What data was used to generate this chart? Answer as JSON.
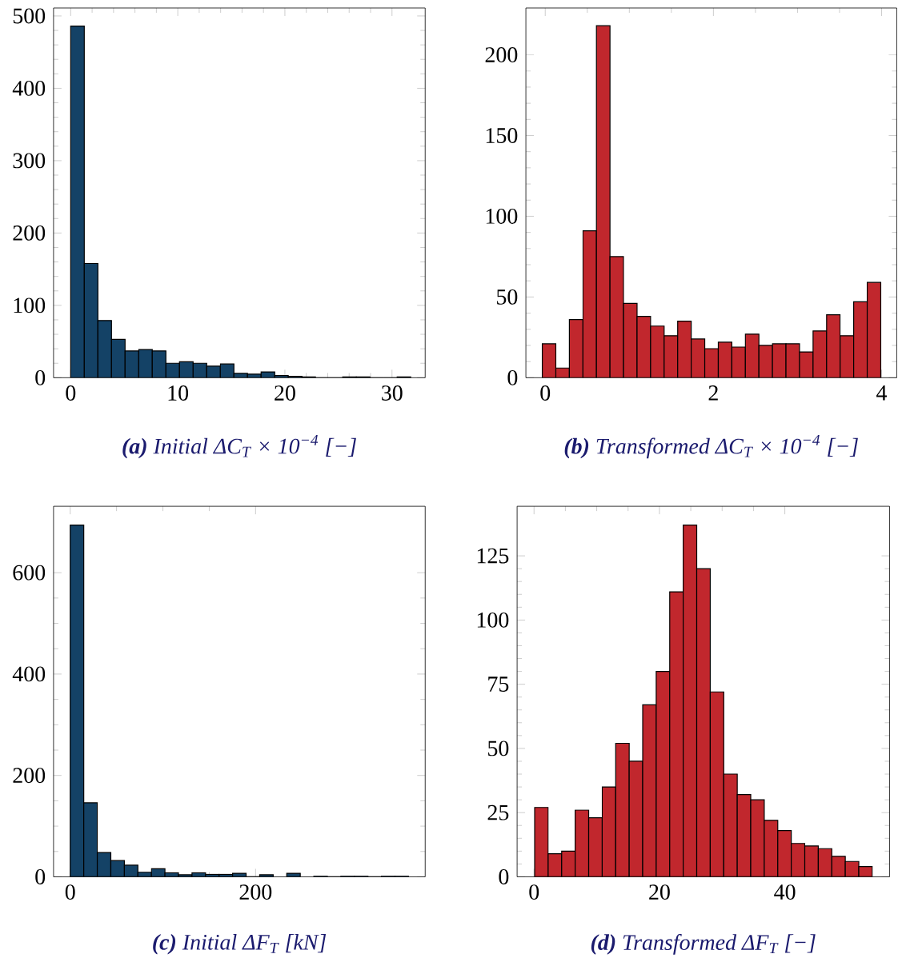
{
  "chart_data": [
    {
      "type": "histogram",
      "xlabel": "**(a)** Initial ΔC$_{T}$ × 10$^{−4}$ [−]",
      "color": "#144266",
      "bins": [
        0,
        1.27,
        2.54,
        3.81,
        5.08,
        6.35,
        7.62,
        8.89,
        10.16,
        11.43,
        12.7,
        13.97,
        15.24,
        16.51,
        17.78,
        19.05,
        20.32,
        21.59,
        22.86,
        24.13,
        25.4,
        26.67,
        27.94,
        29.21,
        30.48,
        31.75
      ],
      "values": [
        486,
        158,
        79,
        53,
        37,
        39,
        37,
        20,
        22,
        20,
        16,
        19,
        6,
        5,
        8,
        3,
        2,
        1,
        0,
        0,
        1,
        1,
        0,
        0,
        1
      ],
      "xlim": [
        -1.6,
        33.1
      ],
      "ylim": [
        0,
        511
      ],
      "xticks": [
        0,
        10,
        20,
        30
      ],
      "yticks": [
        0,
        100,
        200,
        300,
        400,
        500
      ]
    },
    {
      "type": "histogram",
      "xlabel": "**(b)** Transformed ΔC$_{T}$ × 10$^{−4}$ [−]",
      "color": "#c1272d",
      "bins": [
        -0.035,
        0.126,
        0.287,
        0.448,
        0.609,
        0.77,
        0.931,
        1.092,
        1.253,
        1.414,
        1.575,
        1.736,
        1.897,
        2.058,
        2.219,
        2.38,
        2.541,
        2.702,
        2.863,
        3.024,
        3.185,
        3.346,
        3.507,
        3.668,
        3.829,
        3.99
      ],
      "values": [
        21,
        6,
        36,
        91,
        218,
        75,
        46,
        38,
        32,
        26,
        35,
        24,
        18,
        22,
        19,
        27,
        20,
        21,
        21,
        16,
        29,
        39,
        26,
        47,
        59
      ],
      "xlim": [
        -0.23,
        4.18
      ],
      "ylim": [
        0,
        229
      ],
      "xticks": [
        0,
        2,
        4
      ],
      "yticks": [
        0,
        50,
        100,
        150,
        200
      ]
    },
    {
      "type": "histogram",
      "xlabel": "**(c)** Initial ΔF$_{T}$ [kN]",
      "color": "#144266",
      "bins": [
        0,
        14.6,
        29.2,
        43.8,
        58.4,
        73,
        87.6,
        102.2,
        116.8,
        131.4,
        146,
        160.6,
        175.2,
        189.8,
        204.4,
        219,
        233.6,
        248.2,
        262.8,
        277.4,
        292,
        306.6,
        321.2,
        335.8,
        350.4,
        365
      ],
      "values": [
        694,
        146,
        48,
        32,
        23,
        9,
        16,
        8,
        4,
        8,
        5,
        5,
        7,
        0,
        4,
        null,
        7,
        null,
        1,
        0,
        1,
        1,
        0,
        1,
        1
      ],
      "xlim": [
        -18,
        383
      ],
      "ylim": [
        0,
        731
      ],
      "xticks": [
        0,
        200
      ],
      "yticks": [
        0,
        200,
        400,
        600
      ]
    },
    {
      "type": "histogram",
      "xlabel": "**(d)** Transformed ΔF$_{T}$ [−]",
      "color": "#c1272d",
      "bins": [
        0.1,
        2.254,
        4.408,
        6.562,
        8.716,
        10.87,
        13.024,
        15.178,
        17.332,
        19.486,
        21.64,
        23.794,
        25.948,
        28.102,
        30.256,
        32.41,
        34.564,
        36.718,
        38.872,
        41.026,
        43.18,
        45.334,
        47.488,
        49.642,
        51.796,
        53.95
      ],
      "values": [
        27,
        9,
        10,
        26,
        23,
        35,
        52,
        45,
        67,
        80,
        111,
        137,
        120,
        72,
        40,
        32,
        30,
        22,
        18,
        13,
        12,
        11,
        8,
        6,
        4
      ],
      "xlim": [
        -2.7,
        56.7
      ],
      "ylim": [
        0,
        144.3
      ],
      "xticks": [
        0,
        20,
        40
      ],
      "yticks": [
        0,
        25,
        50,
        75,
        100,
        125
      ]
    }
  ]
}
